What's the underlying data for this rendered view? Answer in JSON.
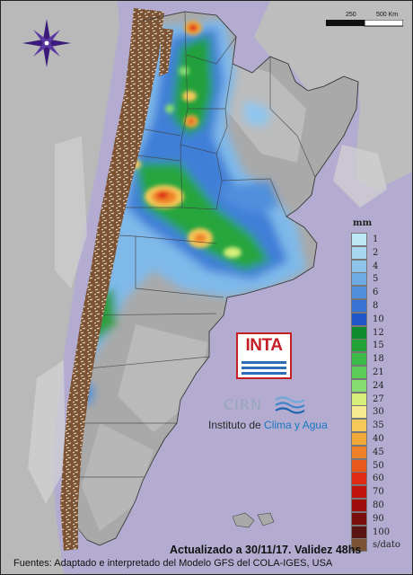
{
  "legend": {
    "unit": "mm",
    "classes": [
      {
        "label": "1",
        "color": "#bfe8f6"
      },
      {
        "label": "2",
        "color": "#a6d8f0"
      },
      {
        "label": "4",
        "color": "#8cc4ea"
      },
      {
        "label": "5",
        "color": "#6eabe4"
      },
      {
        "label": "6",
        "color": "#4f8fdc"
      },
      {
        "label": "8",
        "color": "#3773d2"
      },
      {
        "label": "10",
        "color": "#1f55c4"
      },
      {
        "label": "12",
        "color": "#0f8a2d"
      },
      {
        "label": "15",
        "color": "#23a238"
      },
      {
        "label": "18",
        "color": "#3bba47"
      },
      {
        "label": "21",
        "color": "#5ccc58"
      },
      {
        "label": "24",
        "color": "#88dc72"
      },
      {
        "label": "27",
        "color": "#d7ef7a"
      },
      {
        "label": "30",
        "color": "#f7ea92"
      },
      {
        "label": "35",
        "color": "#f5c958"
      },
      {
        "label": "40",
        "color": "#f3a83a"
      },
      {
        "label": "45",
        "color": "#ef8128"
      },
      {
        "label": "50",
        "color": "#e8581c"
      },
      {
        "label": "60",
        "color": "#de2c14"
      },
      {
        "label": "70",
        "color": "#c2120e"
      },
      {
        "label": "80",
        "color": "#a00d0d"
      },
      {
        "label": "90",
        "color": "#7a0d0d"
      },
      {
        "label": "100",
        "color": "#5a1414"
      },
      {
        "label": "s/dato",
        "color": "#7b5232"
      }
    ]
  },
  "scale": {
    "label_mid": "250",
    "label_end": "500 Km"
  },
  "logos": {
    "inta": "INTA",
    "cirn": "CIRN",
    "cirn_subtitle_prefix": "Instituto de ",
    "cirn_subtitle_highlight": "Clima y Agua"
  },
  "footer": {
    "updated": "Actualizado a 30/11/17. Validez 48hs",
    "sources": "Fuentes: Adaptado e interpretado del Modelo GFS del COLA-IGES, USA"
  },
  "icons": {
    "compass": "compass-rose-icon"
  },
  "colors": {
    "background": "#b4acd0",
    "no_data": "#7b5232",
    "inta_red": "#c31f25",
    "inta_blue": "#2a6fb5"
  }
}
